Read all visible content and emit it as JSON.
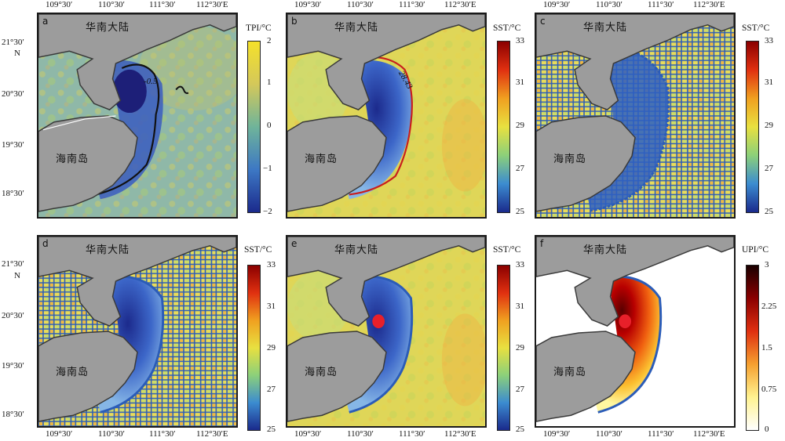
{
  "axes": {
    "lon_ticks": [
      "109°30′",
      "110°30′",
      "111°30′",
      "112°30′E"
    ],
    "lat_ticks": [
      "21°30′",
      "20°30′",
      "19°30′",
      "18°30′"
    ],
    "lat_unit": "N"
  },
  "labels": {
    "mainland": "华南大陆",
    "island": "海南岛"
  },
  "panels": [
    {
      "id": "a",
      "letter": "a",
      "colorbar_title": "TPI/°C",
      "colorbar_ticks": [
        "2",
        "1",
        "0",
        "−1",
        "−2"
      ],
      "contour_label": "-0.5"
    },
    {
      "id": "b",
      "letter": "b",
      "colorbar_title": "SST/°C",
      "colorbar_ticks": [
        "33",
        "31",
        "29",
        "27",
        "25"
      ],
      "contour_label": "28.43"
    },
    {
      "id": "c",
      "letter": "c",
      "colorbar_title": "SST/°C",
      "colorbar_ticks": [
        "33",
        "31",
        "29",
        "27",
        "25"
      ]
    },
    {
      "id": "d",
      "letter": "d",
      "colorbar_title": "SST/°C",
      "colorbar_ticks": [
        "33",
        "31",
        "29",
        "27",
        "25"
      ]
    },
    {
      "id": "e",
      "letter": "e",
      "colorbar_title": "SST/°C",
      "colorbar_ticks": [
        "33",
        "31",
        "29",
        "27",
        "25"
      ]
    },
    {
      "id": "f",
      "letter": "f",
      "colorbar_title": "UPI/°C",
      "colorbar_ticks": [
        "3",
        "2.25",
        "1.5",
        "0.75",
        "0"
      ]
    }
  ],
  "colors": {
    "land": "#9c9c9c",
    "coast": "#3a3a3a",
    "seg_outline": "#2b5cb8",
    "contour_a": "#111111",
    "contour_b": "#c81e1e",
    "marker": "#e8202a"
  }
}
